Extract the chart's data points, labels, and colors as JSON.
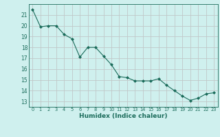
{
  "x": [
    0,
    1,
    2,
    3,
    4,
    5,
    6,
    7,
    8,
    9,
    10,
    11,
    12,
    13,
    14,
    15,
    16,
    17,
    18,
    19,
    20,
    21,
    22,
    23
  ],
  "y": [
    21.5,
    19.9,
    20.0,
    20.0,
    19.2,
    18.8,
    17.1,
    18.0,
    18.0,
    17.2,
    16.4,
    15.3,
    15.2,
    14.9,
    14.9,
    14.9,
    15.1,
    14.5,
    14.0,
    13.5,
    13.1,
    13.3,
    13.7,
    13.8
  ],
  "xlim": [
    -0.5,
    23.5
  ],
  "ylim": [
    12.5,
    22.0
  ],
  "yticks": [
    13,
    14,
    15,
    16,
    17,
    18,
    19,
    20,
    21
  ],
  "xticks": [
    0,
    1,
    2,
    3,
    4,
    5,
    6,
    7,
    8,
    9,
    10,
    11,
    12,
    13,
    14,
    15,
    16,
    17,
    18,
    19,
    20,
    21,
    22,
    23
  ],
  "xlabel": "Humidex (Indice chaleur)",
  "line_color": "#1a6b5a",
  "marker_color": "#1a6b5a",
  "bg_color": "#cff0ee",
  "grid_color": "#c0c8c8",
  "tick_color": "#1a6b5a",
  "label_color": "#1a6b5a",
  "xlabel_fontsize": 6.5,
  "ytick_fontsize": 5.5,
  "xtick_fontsize": 4.8
}
